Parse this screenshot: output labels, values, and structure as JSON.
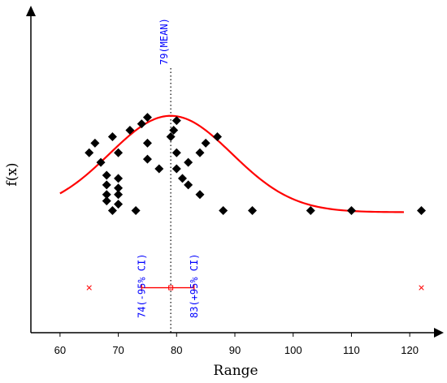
{
  "chart_data": {
    "type": "scatter",
    "xlabel": "Range",
    "ylabel": "f(x)",
    "xlim": [
      55,
      125
    ],
    "ylim": [
      0,
      1
    ],
    "x_ticks": [
      60,
      70,
      80,
      90,
      100,
      110,
      120
    ],
    "x_tick_labels": [
      "60",
      "70",
      "80",
      "90",
      "100",
      "110",
      "120"
    ],
    "grid": false,
    "points": [
      {
        "x": 65,
        "y": 0.56
      },
      {
        "x": 66,
        "y": 0.59
      },
      {
        "x": 67,
        "y": 0.53
      },
      {
        "x": 68,
        "y": 0.49
      },
      {
        "x": 68,
        "y": 0.46
      },
      {
        "x": 68,
        "y": 0.43
      },
      {
        "x": 68,
        "y": 0.41
      },
      {
        "x": 69,
        "y": 0.38
      },
      {
        "x": 69,
        "y": 0.61
      },
      {
        "x": 70,
        "y": 0.56
      },
      {
        "x": 70,
        "y": 0.48
      },
      {
        "x": 70,
        "y": 0.45
      },
      {
        "x": 70,
        "y": 0.43
      },
      {
        "x": 70,
        "y": 0.4
      },
      {
        "x": 72,
        "y": 0.63
      },
      {
        "x": 73,
        "y": 0.38
      },
      {
        "x": 74,
        "y": 0.65
      },
      {
        "x": 75,
        "y": 0.67
      },
      {
        "x": 75,
        "y": 0.59
      },
      {
        "x": 75,
        "y": 0.54
      },
      {
        "x": 77,
        "y": 0.51
      },
      {
        "x": 79,
        "y": 0.61
      },
      {
        "x": 79.5,
        "y": 0.63
      },
      {
        "x": 80,
        "y": 0.66
      },
      {
        "x": 80,
        "y": 0.51
      },
      {
        "x": 80,
        "y": 0.56
      },
      {
        "x": 81,
        "y": 0.48
      },
      {
        "x": 82,
        "y": 0.46
      },
      {
        "x": 82,
        "y": 0.53
      },
      {
        "x": 84,
        "y": 0.43
      },
      {
        "x": 84,
        "y": 0.56
      },
      {
        "x": 85,
        "y": 0.59
      },
      {
        "x": 87,
        "y": 0.61
      },
      {
        "x": 88,
        "y": 0.38
      },
      {
        "x": 93,
        "y": 0.38
      },
      {
        "x": 103,
        "y": 0.38
      },
      {
        "x": 110,
        "y": 0.38
      },
      {
        "x": 122,
        "y": 0.38
      }
    ],
    "curve": {
      "color": "#ff0000",
      "x_range": [
        60,
        119
      ],
      "mean": 79,
      "sd": 10.5,
      "baseline": 0.375,
      "amplitude": 0.3,
      "samples": [
        {
          "x": 60,
          "y": 0.48
        },
        {
          "x": 65,
          "y": 0.55
        },
        {
          "x": 70,
          "y": 0.62
        },
        {
          "x": 75,
          "y": 0.665
        },
        {
          "x": 79,
          "y": 0.675
        },
        {
          "x": 85,
          "y": 0.62
        },
        {
          "x": 90,
          "y": 0.53
        },
        {
          "x": 95,
          "y": 0.46
        },
        {
          "x": 100,
          "y": 0.415
        },
        {
          "x": 105,
          "y": 0.39
        },
        {
          "x": 110,
          "y": 0.38
        },
        {
          "x": 119,
          "y": 0.375
        }
      ]
    },
    "mean_line": {
      "x": 79,
      "label": "79(MEAN)",
      "color": "#0000ff"
    },
    "ci": {
      "lower": 74,
      "upper": 83,
      "center": 79,
      "y": 0.14,
      "lower_label": "74(-95% CI)",
      "upper_label": "83(+95% CI)",
      "bar_color": "#ff0000",
      "label_color": "#0000ff"
    },
    "outlier_markers": [
      {
        "x": 65,
        "y": 0.14
      },
      {
        "x": 122,
        "y": 0.14
      }
    ]
  }
}
